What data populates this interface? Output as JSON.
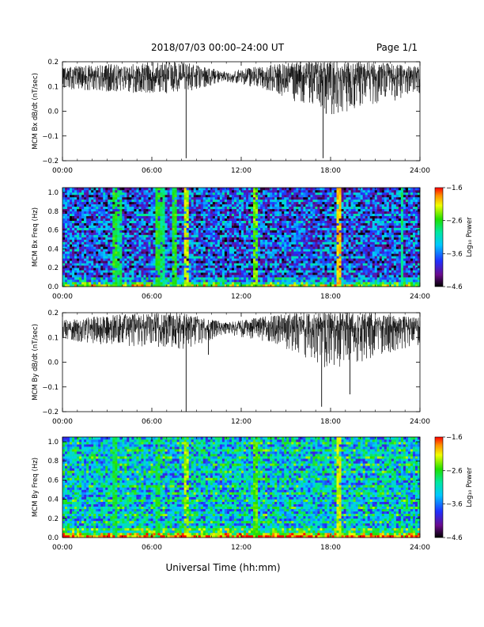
{
  "header": {
    "title": "2018/07/03  00:00–24:00 UT",
    "page": "Page 1/1"
  },
  "xaxis": {
    "label": "Universal Time (hh:mm)",
    "ticks": [
      "00:00",
      "06:00",
      "12:00",
      "18:00",
      "24:00"
    ],
    "range_hours": [
      0,
      24
    ]
  },
  "chart_data": [
    {
      "type": "line",
      "ylabel": "MCM Bx dB/dt (nT/sec)",
      "ylim": [
        -0.2,
        0.2
      ],
      "yticks": [
        "0.2",
        "0.1",
        "0.0",
        "−0.1",
        "−0.2"
      ],
      "ytick_values": [
        0.2,
        0.1,
        0.0,
        -0.1,
        -0.2
      ],
      "spikes": [
        {
          "x": 8.3,
          "y": -0.19
        },
        {
          "x": 17.5,
          "y": -0.19
        },
        {
          "x": 17.7,
          "y": -0.01
        },
        {
          "x": 17.1,
          "y": 0.05
        }
      ],
      "baseline": 0.14,
      "envelope": [
        {
          "x": 0,
          "low": 0.09,
          "high": 0.18
        },
        {
          "x": 3,
          "low": 0.08,
          "high": 0.19
        },
        {
          "x": 6,
          "low": 0.07,
          "high": 0.2
        },
        {
          "x": 8,
          "low": 0.07,
          "high": 0.2
        },
        {
          "x": 11,
          "low": 0.12,
          "high": 0.16
        },
        {
          "x": 14,
          "low": 0.08,
          "high": 0.19
        },
        {
          "x": 16,
          "low": 0.03,
          "high": 0.2
        },
        {
          "x": 18,
          "low": -0.02,
          "high": 0.2
        },
        {
          "x": 21,
          "low": 0.03,
          "high": 0.2
        },
        {
          "x": 24,
          "low": 0.06,
          "high": 0.18
        }
      ]
    },
    {
      "type": "heatmap",
      "ylabel": "MCM Bx Freq (Hz)",
      "ylim": [
        0,
        1.05
      ],
      "yticks": [
        "1.0",
        "0.8",
        "0.6",
        "0.4",
        "0.2",
        "0.0"
      ],
      "ytick_values": [
        1.0,
        0.8,
        0.6,
        0.4,
        0.2,
        0.0
      ],
      "colorbar": {
        "label": "Log₁₀ Power",
        "ticks": [
          "−1.6",
          "−2.6",
          "−3.6",
          "−4.6"
        ],
        "tick_values": [
          -1.6,
          -2.6,
          -3.6,
          -4.6
        ]
      },
      "background_level": -3.9,
      "vertical_bands": [
        {
          "x": 3.6,
          "level": -2.6
        },
        {
          "x": 3.9,
          "level": -2.8
        },
        {
          "x": 6.4,
          "level": -2.6
        },
        {
          "x": 6.7,
          "level": -2.8
        },
        {
          "x": 7.5,
          "level": -2.6
        },
        {
          "x": 8.3,
          "level": -2.2
        },
        {
          "x": 12.9,
          "level": -2.4
        },
        {
          "x": 18.5,
          "level": -2.0
        },
        {
          "x": 22.8,
          "level": -2.9
        }
      ]
    },
    {
      "type": "line",
      "ylabel": "MCM By dB/dt (nT/sec)",
      "ylim": [
        -0.2,
        0.2
      ],
      "yticks": [
        "0.2",
        "0.1",
        "0.0",
        "−0.1",
        "−0.2"
      ],
      "ytick_values": [
        0.2,
        0.1,
        0.0,
        -0.1,
        -0.2
      ],
      "spikes": [
        {
          "x": 8.3,
          "y": -0.2
        },
        {
          "x": 17.4,
          "y": -0.18
        },
        {
          "x": 19.3,
          "y": -0.13
        },
        {
          "x": 9.8,
          "y": 0.03
        }
      ],
      "baseline": 0.14,
      "envelope": [
        {
          "x": 0,
          "low": 0.09,
          "high": 0.17
        },
        {
          "x": 3,
          "low": 0.07,
          "high": 0.19
        },
        {
          "x": 6,
          "low": 0.06,
          "high": 0.2
        },
        {
          "x": 8,
          "low": 0.05,
          "high": 0.2
        },
        {
          "x": 11,
          "low": 0.11,
          "high": 0.16
        },
        {
          "x": 14,
          "low": 0.08,
          "high": 0.19
        },
        {
          "x": 16,
          "low": 0.03,
          "high": 0.2
        },
        {
          "x": 18,
          "low": -0.04,
          "high": 0.2
        },
        {
          "x": 21,
          "low": 0.02,
          "high": 0.2
        },
        {
          "x": 24,
          "low": 0.07,
          "high": 0.18
        }
      ]
    },
    {
      "type": "heatmap",
      "ylabel": "MCM By Freq (Hz)",
      "ylim": [
        0,
        1.05
      ],
      "yticks": [
        "1.0",
        "0.8",
        "0.6",
        "0.4",
        "0.2",
        "0.0"
      ],
      "ytick_values": [
        1.0,
        0.8,
        0.6,
        0.4,
        0.2,
        0.0
      ],
      "colorbar": {
        "label": "Log₁₀ Power",
        "ticks": [
          "−1.6",
          "−2.6",
          "−3.6",
          "−4.6"
        ],
        "tick_values": [
          -1.6,
          -2.6,
          -3.6,
          -4.6
        ]
      },
      "background_level": -3.3,
      "vertical_bands": [
        {
          "x": 3.6,
          "level": -2.7
        },
        {
          "x": 6.4,
          "level": -2.7
        },
        {
          "x": 8.3,
          "level": -2.3
        },
        {
          "x": 12.9,
          "level": -2.5
        },
        {
          "x": 18.5,
          "level": -2.2
        }
      ]
    }
  ]
}
